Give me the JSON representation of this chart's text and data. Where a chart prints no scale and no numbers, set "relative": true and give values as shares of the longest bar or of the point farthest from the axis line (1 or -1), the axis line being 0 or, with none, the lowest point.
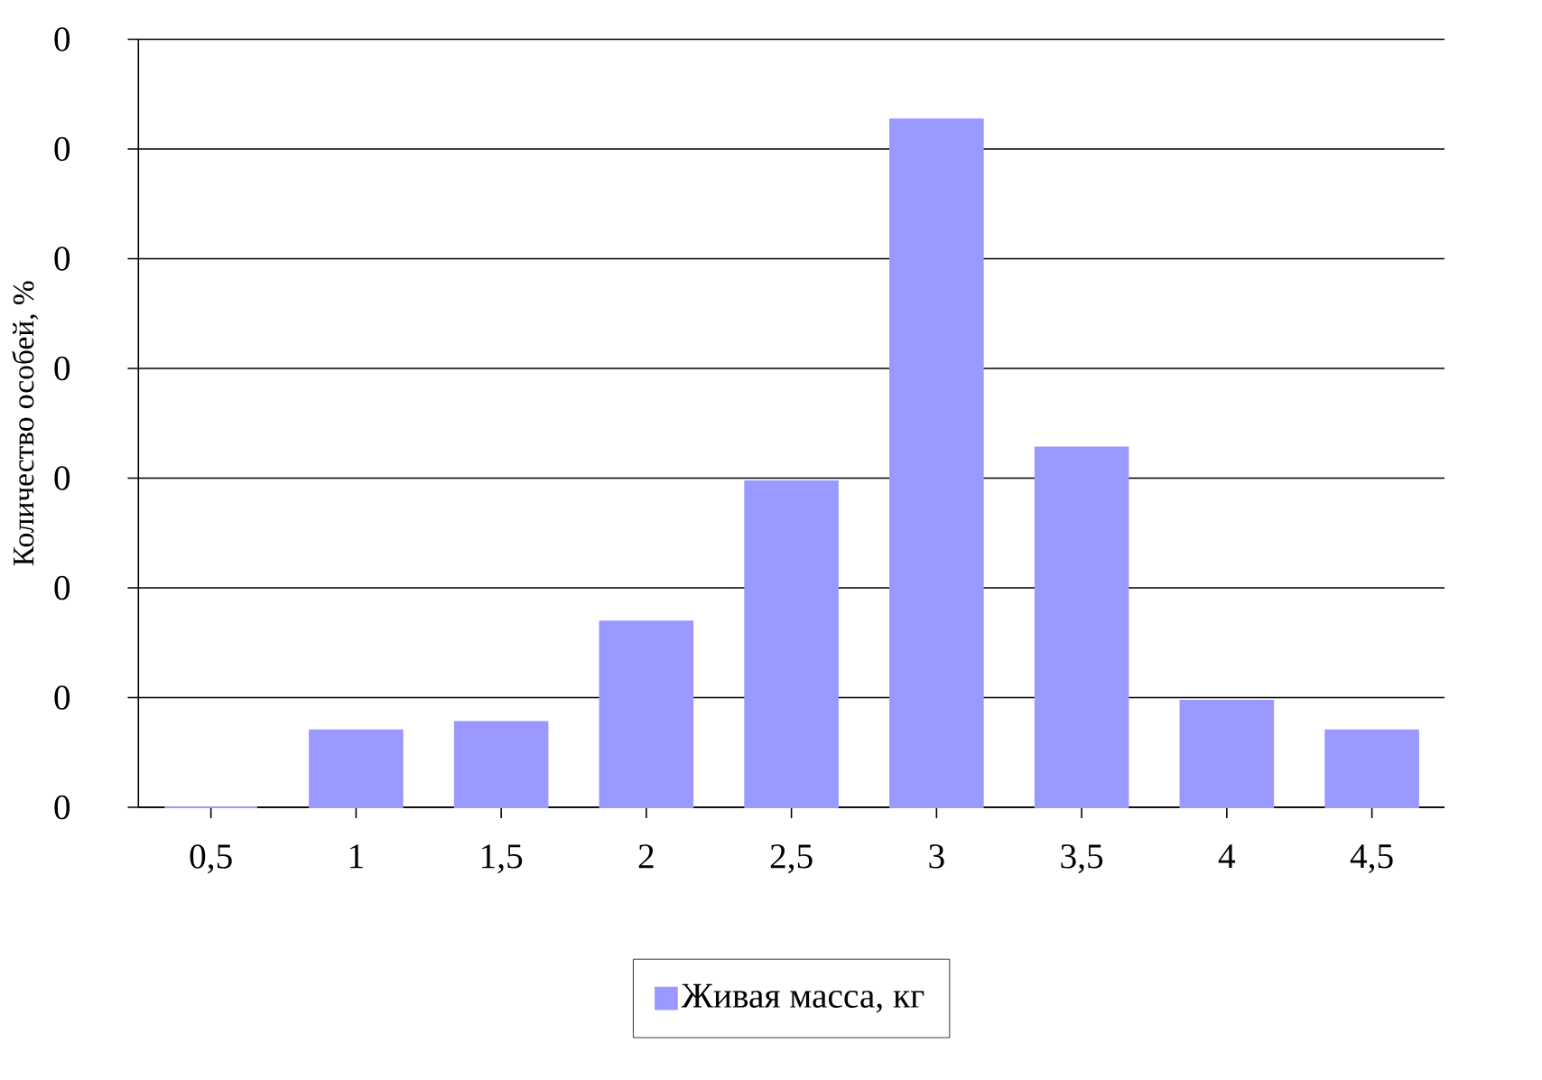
{
  "chart_data": {
    "type": "bar",
    "ylabel": "Количество особей, %",
    "relative": true,
    "categories": [
      "0,5",
      "1",
      "1,5",
      "2",
      "2,5",
      "3",
      "3,5",
      "4",
      "4,5"
    ],
    "series": [
      {
        "name": "Живая масса, кг",
        "color": "#9999ff",
        "values": [
          0,
          0.112,
          0.124,
          0.27,
          0.474,
          1,
          0.523,
          0.155,
          0.112
        ]
      }
    ],
    "annotations": [
      "0",
      "0",
      "0",
      "0",
      "0",
      "0",
      "0",
      "0"
    ],
    "grid": "y",
    "legend": "bottom"
  }
}
